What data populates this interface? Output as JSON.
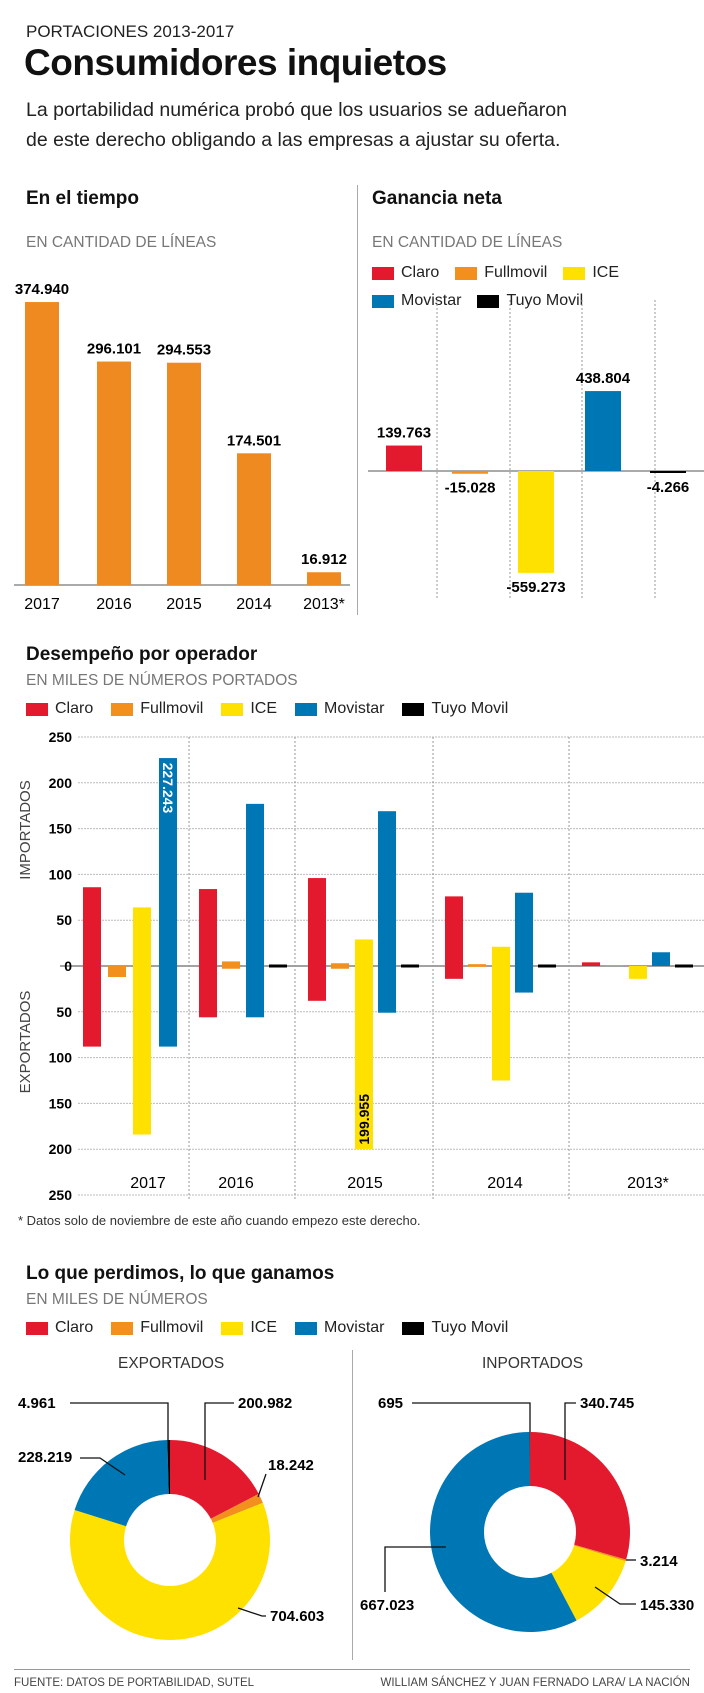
{
  "kicker": "PORTACIONES 2013-2017",
  "title": "Consumidores inquietos",
  "subtitle": [
    "La portabilidad numérica probó que los usuarios se adueñaron",
    "de este derecho obligando a las empresas a ajustar su oferta."
  ],
  "colors": {
    "Claro": "#e3192d",
    "Fullmovil": "#f3901d",
    "ICE": "#ffe100",
    "Movistar": "#0077b5",
    "Tuyo Movil": "#000000",
    "bars": "#ee8a1f"
  },
  "legend": [
    "Claro",
    "Fullmovil",
    "ICE",
    "Movistar",
    "Tuyo Movil"
  ],
  "chart_data": [
    {
      "type": "bar",
      "title": "En el tiempo",
      "subtitle": "EN CANTIDAD DE LÍNEAS",
      "categories": [
        "2017",
        "2016",
        "2015",
        "2014",
        "2013*"
      ],
      "values": [
        374940,
        296101,
        294553,
        174501,
        16912
      ],
      "labels": [
        "374.940",
        "296.101",
        "294.553",
        "174.501",
        "16.912"
      ]
    },
    {
      "type": "bar",
      "title": "Ganancia neta",
      "subtitle": "EN CANTIDAD DE LÍNEAS",
      "categories": [
        "Claro",
        "Fullmovil",
        "ICE",
        "Movistar",
        "Tuyo Movil"
      ],
      "values": [
        139763,
        -15028,
        -559273,
        438804,
        -4266
      ],
      "labels": [
        "139.763",
        "-15.028",
        "-559.273",
        "438.804",
        "-4.266"
      ]
    },
    {
      "type": "bar",
      "title": "Desempeño por operador",
      "subtitle": "EN MILES DE NÚMEROS PORTADOS",
      "ylabel_top": "IMPORTADOS",
      "ylabel_bottom": "EXPORTADOS",
      "yticks": [
        "250",
        "200",
        "150",
        "100",
        "50",
        "0",
        "50",
        "100",
        "150",
        "200",
        "250"
      ],
      "ylim": [
        -250,
        250
      ],
      "grid": true,
      "categories": [
        "2017",
        "2016",
        "2015",
        "2014",
        "2013*"
      ],
      "series": [
        {
          "name": "Claro",
          "importados": [
            86,
            84,
            96,
            76,
            4
          ],
          "exportados": [
            88,
            56,
            38,
            14,
            0
          ]
        },
        {
          "name": "Fullmovil",
          "importados": [
            0,
            5,
            3,
            2,
            1
          ],
          "exportados": [
            12,
            3,
            3,
            1,
            0
          ]
        },
        {
          "name": "ICE",
          "importados": [
            64,
            null,
            29,
            21,
            0
          ],
          "exportados": [
            184,
            null,
            200,
            125,
            14
          ]
        },
        {
          "name": "Movistar",
          "importados": [
            227,
            177,
            169,
            80,
            15
          ],
          "exportados": [
            88,
            56,
            51,
            29,
            0
          ]
        },
        {
          "name": "Tuyo Movil",
          "importados": [
            null,
            1,
            1,
            1,
            1
          ],
          "exportados": [
            null,
            0,
            0,
            0,
            0
          ]
        }
      ],
      "annotations": [
        "227.243",
        "199.955"
      ],
      "footnote": "* Datos solo de noviembre de este año cuando empezo este derecho."
    },
    {
      "type": "pie",
      "title": "Lo que perdimos, lo que ganamos",
      "subtitle": "EN MILES DE NÚMEROS",
      "charts": [
        {
          "name": "EXPORTADOS",
          "categories": [
            "Claro",
            "Fullmovil",
            "ICE",
            "Movistar",
            "Tuyo Movil"
          ],
          "values": [
            200982,
            18242,
            704603,
            228219,
            4961
          ],
          "labels": [
            "200.982",
            "18.242",
            "704.603",
            "228.219",
            "4.961"
          ]
        },
        {
          "name": "INPORTADOS",
          "categories": [
            "Claro",
            "Fullmovil",
            "ICE",
            "Movistar",
            "Tuyo Movil"
          ],
          "values": [
            340745,
            3214,
            145330,
            667023,
            695
          ],
          "labels": [
            "340.745",
            "3.214",
            "145.330",
            "667.023",
            "695"
          ]
        }
      ]
    }
  ],
  "footer": {
    "source": "FUENTE: DATOS DE PORTABILIDAD, SUTEL",
    "credit": "WILLIAM SÁNCHEZ Y JUAN FERNADO LARA/ LA NACIÓN"
  }
}
